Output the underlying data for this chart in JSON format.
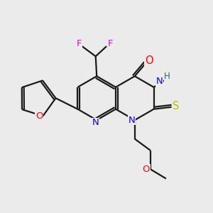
{
  "bg_color": "#ebebeb",
  "bond_color": "#1a1a1a",
  "atom_colors": {
    "N": "#0000ff",
    "O": "#ff0000",
    "F": "#ee00ee",
    "S": "#bbbb00",
    "H": "#336666",
    "C": "#1a1a1a"
  },
  "font_size": 9.5,
  "figsize": [
    3.0,
    3.0
  ],
  "dpi": 100
}
